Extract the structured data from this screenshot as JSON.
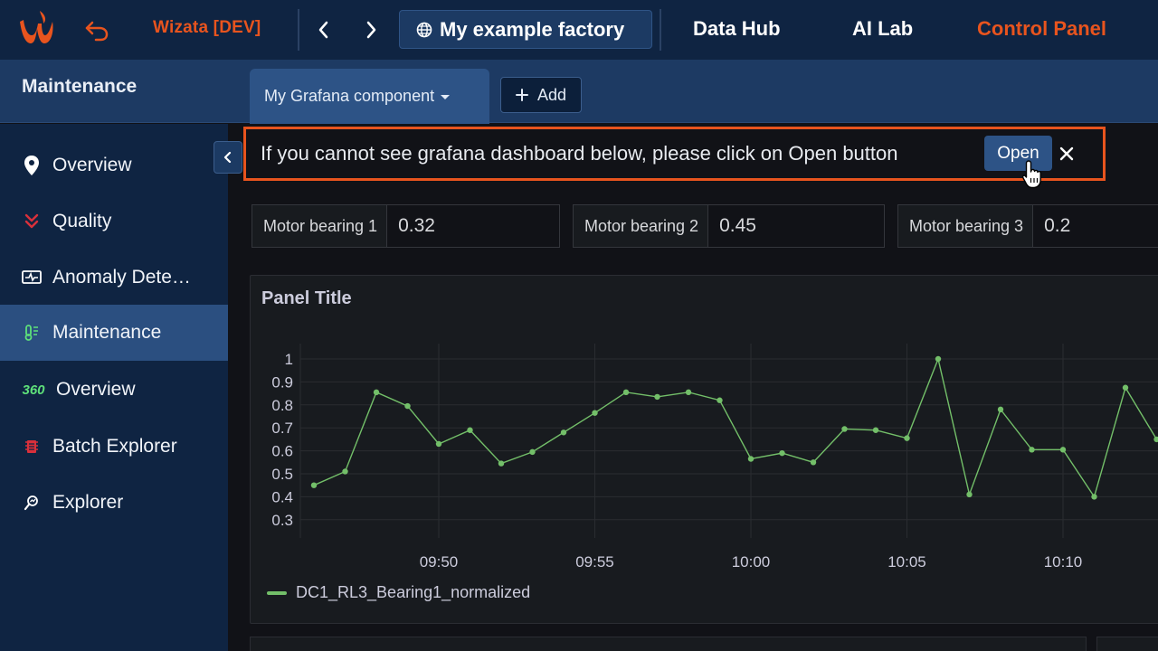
{
  "topbar": {
    "env_name": "Wizata [DEV]",
    "factory_label": "My example factory",
    "links": [
      {
        "label": "Data Hub"
      },
      {
        "label": "AI Lab"
      },
      {
        "label": "Control Panel"
      }
    ],
    "brand_color": "#e8541e"
  },
  "subheader": {
    "section_title": "Maintenance",
    "tab_label": "My Grafana component",
    "add_label": "Add"
  },
  "sidebar": {
    "items": [
      {
        "label": "Overview",
        "icon": "map-pin-icon"
      },
      {
        "label": "Quality",
        "icon": "double-chevron-down-icon"
      },
      {
        "label": "Anomaly Dete…",
        "icon": "monitor-pulse-icon"
      },
      {
        "label": "Maintenance",
        "icon": "thermometer-icon"
      },
      {
        "label": "Overview",
        "icon": "360-icon",
        "icon_text": "360"
      },
      {
        "label": "Batch Explorer",
        "icon": "batch-icon"
      },
      {
        "label": "Explorer",
        "icon": "search-chart-icon"
      }
    ],
    "active_index": 3
  },
  "notice": {
    "message": "If you cannot see grafana dashboard below, please click on Open button",
    "open_label": "Open"
  },
  "stats": [
    {
      "name": "Motor bearing 1",
      "value": "0.32"
    },
    {
      "name": "Motor bearing 2",
      "value": "0.45"
    },
    {
      "name": "Motor bearing 3",
      "value": "0.2"
    }
  ],
  "panel": {
    "title": "Panel Title",
    "legend_label": "DC1_RL3_Bearing1_normalized"
  },
  "chart_data": {
    "type": "line",
    "title": "Panel Title",
    "xlabel": "",
    "ylabel": "",
    "x_tick_labels": [
      "09:50",
      "09:55",
      "10:00",
      "10:05",
      "10:10"
    ],
    "y_tick_labels": [
      "1",
      "0.9",
      "0.8",
      "0.7",
      "0.6",
      "0.5",
      "0.4",
      "0.3"
    ],
    "ylim": [
      0.3,
      1.0
    ],
    "grid": true,
    "legend": "bottom-left",
    "series": [
      {
        "name": "DC1_RL3_Bearing1_normalized",
        "color": "#73bf69",
        "x": [
          "09:46",
          "09:47",
          "09:48",
          "09:49",
          "09:50",
          "09:51",
          "09:52",
          "09:53",
          "09:54",
          "09:55",
          "09:56",
          "09:57",
          "09:58",
          "09:59",
          "10:00",
          "10:01",
          "10:02",
          "10:03",
          "10:04",
          "10:05",
          "10:06",
          "10:07",
          "10:08",
          "10:09",
          "10:10",
          "10:11",
          "10:12",
          "10:13"
        ],
        "values": [
          0.45,
          0.51,
          0.855,
          0.795,
          0.63,
          0.69,
          0.545,
          0.595,
          0.68,
          0.765,
          0.855,
          0.835,
          0.855,
          0.82,
          0.565,
          0.59,
          0.55,
          0.695,
          0.69,
          0.655,
          1.0,
          0.41,
          0.78,
          0.605,
          0.605,
          0.4,
          0.875,
          0.65
        ]
      }
    ]
  }
}
